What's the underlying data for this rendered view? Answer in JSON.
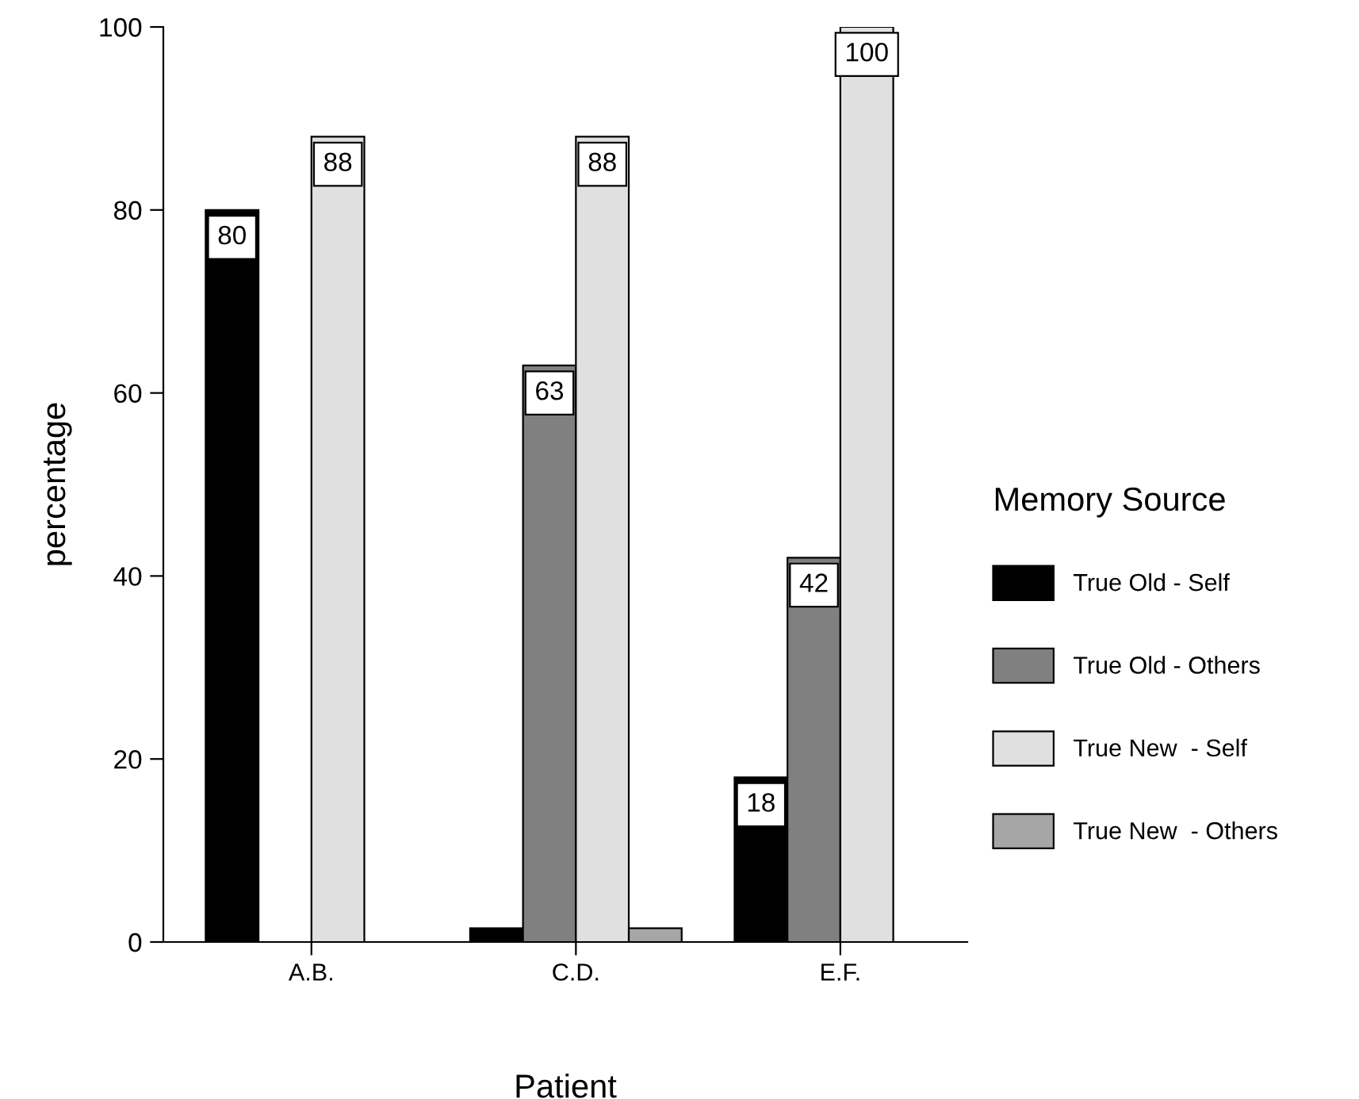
{
  "chart_data": {
    "type": "bar",
    "xlabel": "Patient",
    "ylabel": "percentage",
    "legend_title": "Memory Source",
    "categories": [
      "A.B.",
      "C.D.",
      "E.F."
    ],
    "series": [
      {
        "name": "True Old - Self",
        "color": "#000000",
        "values": [
          80,
          1.5,
          18
        ],
        "value_labels": [
          "80",
          null,
          "18"
        ]
      },
      {
        "name": "True Old - Others",
        "color": "#808080",
        "values": [
          0,
          63,
          42
        ],
        "value_labels": [
          null,
          "63",
          "42"
        ]
      },
      {
        "name": "True New  - Self",
        "color": "#e0e0e0",
        "values": [
          88,
          88,
          100
        ],
        "value_labels": [
          "88",
          "88",
          "100"
        ]
      },
      {
        "name": "True New  - Others",
        "color": "#a6a6a6",
        "values": [
          0,
          1.5,
          0
        ],
        "value_labels": [
          null,
          null,
          null
        ]
      }
    ],
    "ylim": [
      0,
      100
    ],
    "yticks": [
      0,
      20,
      40,
      60,
      80,
      100
    ],
    "grid": false,
    "legend": "right"
  }
}
